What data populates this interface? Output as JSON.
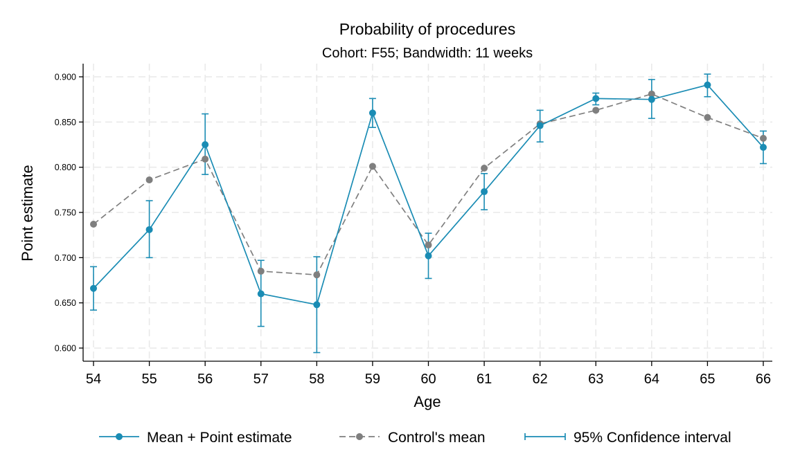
{
  "chart_data": {
    "type": "line",
    "title": "Probability of procedures",
    "subtitle": "Cohort: F55; Bandwidth: 11 weeks",
    "xlabel": "Age",
    "ylabel": "Point estimate",
    "x": [
      54,
      55,
      56,
      57,
      58,
      59,
      60,
      61,
      62,
      63,
      64,
      65,
      66
    ],
    "xlim": [
      54,
      66
    ],
    "ylim": [
      0.59,
      0.905
    ],
    "yticks": [
      "0.600",
      "0.650",
      "0.700",
      "0.750",
      "0.800",
      "0.850",
      "0.900"
    ],
    "xticks": [
      "54",
      "55",
      "56",
      "57",
      "58",
      "59",
      "60",
      "61",
      "62",
      "63",
      "64",
      "65",
      "66"
    ],
    "grid": true,
    "legend_position": "bottom",
    "series": [
      {
        "name": "Mean + Point estimate",
        "style": "solid",
        "color": "#1a8cb4",
        "values": [
          0.666,
          0.731,
          0.825,
          0.66,
          0.648,
          0.86,
          0.702,
          0.773,
          0.846,
          0.876,
          0.875,
          0.891,
          0.822
        ]
      },
      {
        "name": "Control's mean",
        "style": "dashed",
        "color": "#7f7f7f",
        "values": [
          0.737,
          0.786,
          0.809,
          0.685,
          0.681,
          0.801,
          0.714,
          0.799,
          0.848,
          0.863,
          0.881,
          0.855,
          0.832
        ]
      }
    ],
    "confidence_interval": {
      "name": "95% Confidence interval",
      "color": "#1a8cb4",
      "lower": [
        0.642,
        0.7,
        0.792,
        0.624,
        0.595,
        0.844,
        0.677,
        0.753,
        0.828,
        0.869,
        0.854,
        0.878,
        0.804
      ],
      "upper": [
        0.69,
        0.763,
        0.859,
        0.697,
        0.701,
        0.876,
        0.727,
        0.793,
        0.863,
        0.882,
        0.897,
        0.903,
        0.84
      ]
    }
  }
}
